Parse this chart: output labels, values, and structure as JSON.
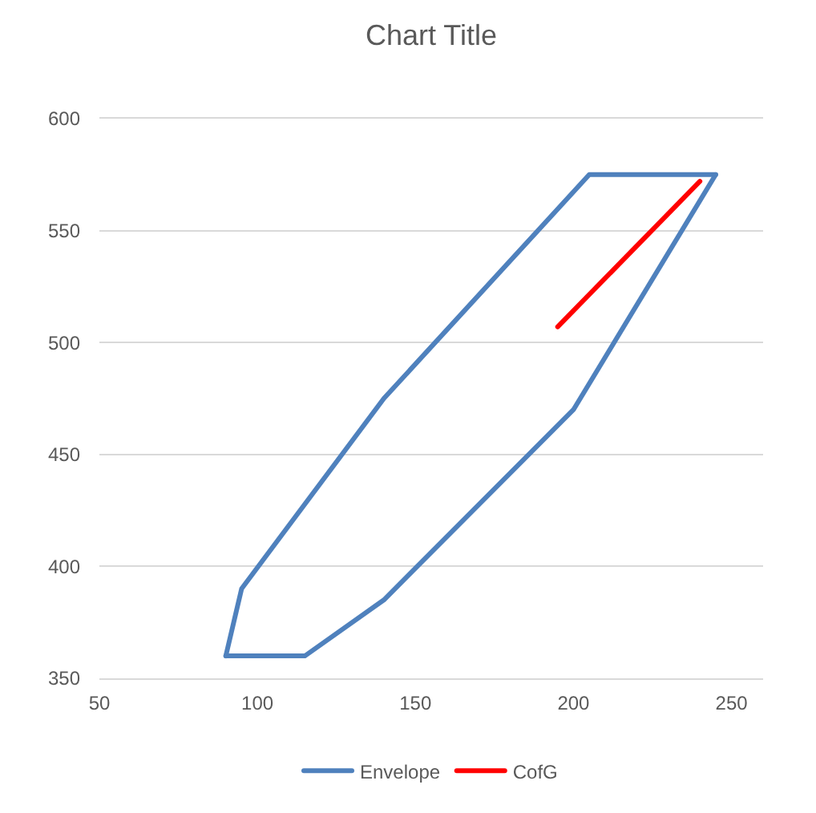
{
  "chart_data": {
    "type": "line",
    "title": "Chart Title",
    "series": [
      {
        "name": "Envelope",
        "color": "#4f81bd",
        "x": [
          90,
          95,
          140,
          205,
          245
        ],
        "values": [
          360,
          390,
          475,
          575,
          575
        ]
      },
      {
        "color": "#4f81bd",
        "x": [
          90,
          115,
          140,
          200,
          245
        ],
        "values": [
          360,
          360,
          385,
          470,
          575
        ]
      },
      {
        "name": "CofG",
        "color": "#ff0000",
        "x": [
          195,
          240
        ],
        "values": [
          507,
          572
        ]
      }
    ],
    "xlim": [
      50,
      260
    ],
    "xticks": [
      50,
      100,
      150,
      200,
      250
    ],
    "ylim": [
      350,
      600
    ],
    "yticks": [
      350,
      400,
      450,
      500,
      550,
      600
    ],
    "grid": "y",
    "legend": "bottom"
  }
}
